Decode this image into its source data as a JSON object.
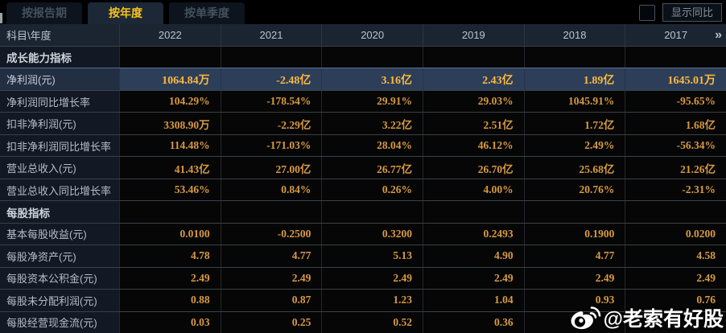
{
  "tab_bar": {
    "tabs": [
      {
        "id": "by-report-period",
        "label": "按报告期",
        "active": false
      },
      {
        "id": "by-year",
        "label": "按年度",
        "active": true
      },
      {
        "id": "by-quarter",
        "label": "按单季度",
        "active": false
      }
    ],
    "show_yoy_label": "显示同比",
    "checkbox_checked": false
  },
  "table": {
    "corner_label": "科目\\年度",
    "years": [
      "2022",
      "2021",
      "2020",
      "2019",
      "2018",
      "2017"
    ],
    "more_years_icon": "»",
    "rows": [
      {
        "type": "section",
        "label": "成长能力指标",
        "highlight": false,
        "values": [
          "",
          "",
          "",
          "",
          "",
          ""
        ]
      },
      {
        "type": "data",
        "label": "净利润(元)",
        "highlight": true,
        "values": [
          "1064.84万",
          "-2.48亿",
          "3.16亿",
          "2.43亿",
          "1.89亿",
          "1645.01万"
        ]
      },
      {
        "type": "data",
        "label": "净利润同比增长率",
        "highlight": false,
        "values": [
          "104.29%",
          "-178.54%",
          "29.91%",
          "29.03%",
          "1045.91%",
          "-95.65%"
        ]
      },
      {
        "type": "data",
        "label": "扣非净利润(元)",
        "highlight": false,
        "values": [
          "3308.90万",
          "-2.29亿",
          "3.22亿",
          "2.51亿",
          "1.72亿",
          "1.68亿"
        ]
      },
      {
        "type": "data",
        "label": "扣非净利润同比增长率",
        "highlight": false,
        "values": [
          "114.48%",
          "-171.03%",
          "28.04%",
          "46.12%",
          "2.49%",
          "-56.34%"
        ]
      },
      {
        "type": "data",
        "label": "营业总收入(元)",
        "highlight": false,
        "values": [
          "41.43亿",
          "27.00亿",
          "26.77亿",
          "26.70亿",
          "25.68亿",
          "21.26亿"
        ]
      },
      {
        "type": "data",
        "label": "营业总收入同比增长率",
        "highlight": false,
        "values": [
          "53.46%",
          "0.84%",
          "0.26%",
          "4.00%",
          "20.76%",
          "-2.31%"
        ]
      },
      {
        "type": "section",
        "label": "每股指标",
        "highlight": false,
        "values": [
          "",
          "",
          "",
          "",
          "",
          ""
        ]
      },
      {
        "type": "data",
        "label": "基本每股收益(元)",
        "highlight": false,
        "values": [
          "0.0100",
          "-0.2500",
          "0.3200",
          "0.2493",
          "0.1900",
          "0.0200"
        ]
      },
      {
        "type": "data",
        "label": "每股净资产(元)",
        "highlight": false,
        "values": [
          "4.78",
          "4.77",
          "5.13",
          "4.90",
          "4.77",
          "4.58"
        ]
      },
      {
        "type": "data",
        "label": "每股资本公积金(元)",
        "highlight": false,
        "values": [
          "2.49",
          "2.49",
          "2.49",
          "2.49",
          "2.49",
          "2.49"
        ]
      },
      {
        "type": "data",
        "label": "每股未分配利润(元)",
        "highlight": false,
        "values": [
          "0.88",
          "0.87",
          "1.23",
          "1.04",
          "0.93",
          "0.76"
        ]
      },
      {
        "type": "data",
        "label": "每股经营现金流(元)",
        "highlight": false,
        "values": [
          "0.03",
          "0.25",
          "0.52",
          "0.36",
          "",
          ""
        ]
      }
    ]
  },
  "watermark": {
    "icon": "weibo-icon",
    "text": "@老索有好股"
  },
  "colors": {
    "accent_gold": "#f7c41d",
    "value_orange": "#d89a42",
    "highlight_value_gold": "#ffb93c",
    "highlight_row_bg": "#2d3e59",
    "header_bg": "#1a2531",
    "label_col_bg": "#121924"
  }
}
